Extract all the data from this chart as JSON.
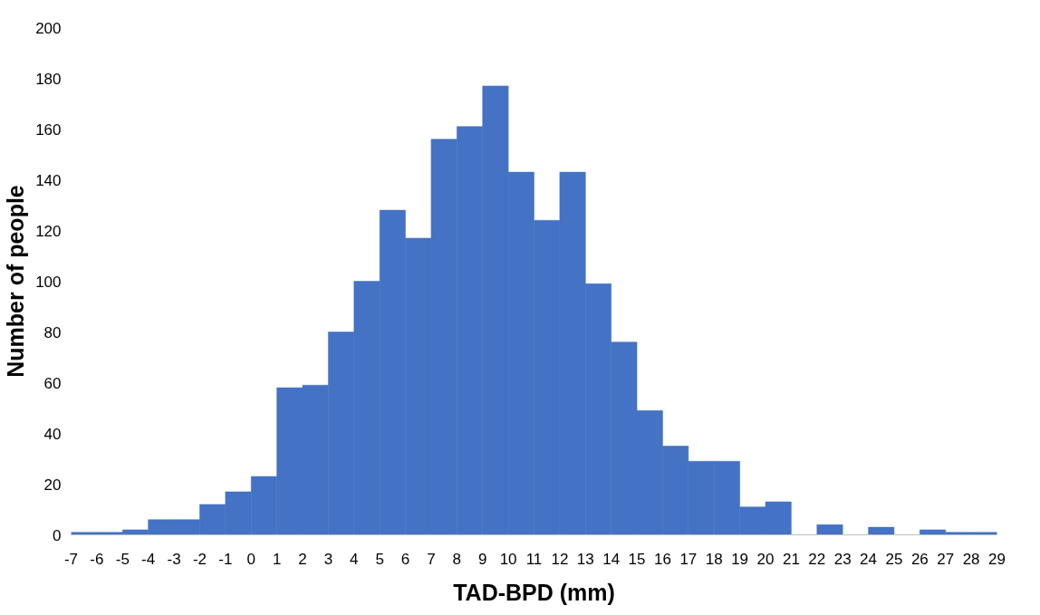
{
  "chart_data": {
    "type": "histogram",
    "xlabel": "TAD-BPD (mm)",
    "ylabel": "Number of people",
    "bins": [
      -7,
      -6,
      -5,
      -4,
      -3,
      -2,
      -1,
      0,
      1,
      2,
      3,
      4,
      5,
      6,
      7,
      8,
      9,
      10,
      11,
      12,
      13,
      14,
      15,
      16,
      17,
      18,
      19,
      20,
      21,
      22,
      23,
      24,
      25,
      26,
      27,
      28,
      29
    ],
    "values": [
      1,
      1,
      2,
      6,
      6,
      12,
      17,
      23,
      58,
      59,
      80,
      100,
      128,
      117,
      156,
      161,
      177,
      143,
      124,
      143,
      99,
      76,
      49,
      35,
      29,
      29,
      11,
      13,
      0,
      4,
      0,
      3,
      0,
      2,
      1,
      1
    ],
    "color": "#4472c4",
    "xlim": [
      -7,
      29
    ],
    "xticks": [
      -7,
      -6,
      -5,
      -4,
      -3,
      -2,
      -1,
      0,
      1,
      2,
      3,
      4,
      5,
      6,
      7,
      8,
      9,
      10,
      11,
      12,
      13,
      14,
      15,
      16,
      17,
      18,
      19,
      20,
      21,
      22,
      23,
      24,
      25,
      26,
      27,
      28,
      29
    ],
    "ylim": [
      0,
      200
    ],
    "yticks": [
      0,
      20,
      40,
      60,
      80,
      100,
      120,
      140,
      160,
      180,
      200
    ]
  }
}
